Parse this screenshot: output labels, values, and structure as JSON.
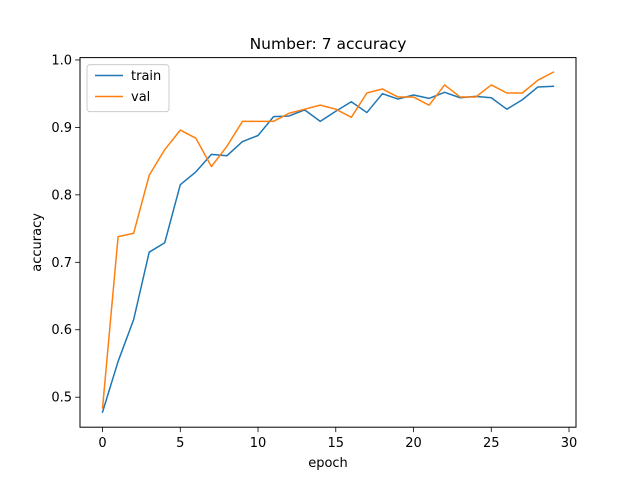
{
  "chart_data": {
    "type": "line",
    "title": "Number: 7 accuracy",
    "xlabel": "epoch",
    "ylabel": "accuracy",
    "xlim": [
      -1.45,
      30.45
    ],
    "ylim": [
      0.4555,
      1.0035
    ],
    "xticks": [
      0,
      5,
      10,
      15,
      20,
      25,
      30
    ],
    "yticks": [
      0.5,
      0.6,
      0.7,
      0.8,
      0.9,
      1.0
    ],
    "xtick_labels": [
      "0",
      "5",
      "10",
      "15",
      "20",
      "25",
      "30"
    ],
    "ytick_labels": [
      "0.5",
      "0.6",
      "0.7",
      "0.8",
      "0.9",
      "1.0"
    ],
    "grid": false,
    "legend": {
      "position": "top-left",
      "entries": [
        "train",
        "val"
      ]
    },
    "x": [
      0,
      1,
      2,
      3,
      4,
      5,
      6,
      7,
      8,
      9,
      10,
      11,
      12,
      13,
      14,
      15,
      16,
      17,
      18,
      19,
      20,
      21,
      22,
      23,
      24,
      25,
      26,
      27,
      28,
      29
    ],
    "series": [
      {
        "name": "train",
        "color": "#1f77b4",
        "values": [
          0.478,
          0.553,
          0.615,
          0.715,
          0.729,
          0.815,
          0.834,
          0.86,
          0.858,
          0.879,
          0.888,
          0.916,
          0.917,
          0.926,
          0.909,
          0.924,
          0.938,
          0.922,
          0.95,
          0.942,
          0.948,
          0.943,
          0.952,
          0.944,
          0.946,
          0.944,
          0.927,
          0.941,
          0.96,
          0.961
        ]
      },
      {
        "name": "val",
        "color": "#ff7f0e",
        "values": [
          0.484,
          0.738,
          0.743,
          0.829,
          0.867,
          0.896,
          0.884,
          0.842,
          0.872,
          0.909,
          0.909,
          0.909,
          0.921,
          0.927,
          0.933,
          0.927,
          0.915,
          0.951,
          0.957,
          0.945,
          0.945,
          0.933,
          0.963,
          0.945,
          0.945,
          0.963,
          0.951,
          0.951,
          0.97,
          0.982
        ]
      }
    ]
  }
}
